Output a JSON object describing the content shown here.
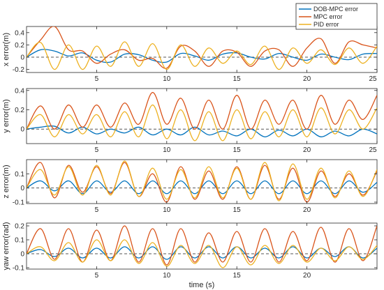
{
  "chart_data": [
    {
      "type": "line",
      "ylabel": "x error(m)",
      "ylim": [
        -0.25,
        0.5
      ],
      "yticks": [
        -0.2,
        0,
        0.2,
        0.4
      ],
      "ytick_labels": [
        "-0.2",
        "0",
        "0.2",
        "0.4"
      ],
      "xlim": [
        0,
        25
      ],
      "xticks": [
        5,
        10,
        15,
        20,
        25
      ],
      "xtick_labels": [
        "5",
        "10",
        "15",
        "20",
        "25"
      ],
      "reference_line": 0,
      "series": [
        {
          "name": "DOB-MPC error",
          "x": [
            0,
            1,
            2,
            3,
            4,
            5,
            6,
            7,
            8,
            9,
            10,
            11,
            12,
            13,
            14,
            15,
            16,
            17,
            18,
            19,
            20,
            21,
            22,
            23,
            24,
            25
          ],
          "values": [
            0,
            0.12,
            0.1,
            0.02,
            0.07,
            -0.05,
            -0.08,
            0.05,
            0.04,
            -0.05,
            -0.08,
            0.06,
            0.02,
            -0.05,
            0.05,
            0.07,
            0.0,
            -0.03,
            0.06,
            0.0,
            -0.05,
            0.05,
            0.0,
            -0.04,
            0.05,
            0.06
          ]
        },
        {
          "name": "MPC error",
          "x": [
            0,
            1,
            2,
            3,
            4,
            5,
            6,
            7,
            8,
            9,
            10,
            11,
            12,
            13,
            14,
            15,
            16,
            17,
            18,
            19,
            20,
            21,
            22,
            23,
            24,
            25
          ],
          "values": [
            0,
            0.28,
            0.5,
            0.12,
            0.1,
            -0.1,
            0.05,
            0.12,
            -0.05,
            -0.02,
            -0.18,
            0.18,
            0.1,
            -0.15,
            0.1,
            0.08,
            -0.15,
            0.1,
            0.12,
            -0.15,
            0.15,
            0.3,
            -0.1,
            0.25,
            0.2,
            0.15
          ]
        },
        {
          "name": "PID error",
          "x": [
            0,
            1,
            2,
            3,
            4,
            5,
            6,
            7,
            8,
            9,
            10,
            11,
            12,
            13,
            14,
            15,
            16,
            17,
            18,
            19,
            20,
            21,
            22,
            23,
            24,
            25
          ],
          "values": [
            0,
            0.24,
            -0.2,
            0.2,
            -0.2,
            0.18,
            -0.15,
            0.25,
            -0.15,
            0.22,
            -0.2,
            0.2,
            -0.15,
            0.15,
            -0.1,
            0.1,
            -0.12,
            0.18,
            -0.2,
            0.15,
            -0.1,
            0.12,
            -0.12,
            0.15,
            -0.1,
            0.18
          ]
        }
      ]
    },
    {
      "type": "line",
      "ylabel": "y error(m)",
      "ylim": [
        -0.15,
        0.42
      ],
      "yticks": [
        0,
        0.2,
        0.4
      ],
      "ytick_labels": [
        "0",
        "0.2",
        "0.4"
      ],
      "xlim": [
        0,
        25
      ],
      "xticks": [
        5,
        10,
        15,
        20,
        25
      ],
      "xtick_labels": [
        "5",
        "10",
        "15",
        "20",
        "25"
      ],
      "reference_line": 0,
      "series": [
        {
          "name": "DOB-MPC error",
          "x": [
            0,
            1,
            2,
            3,
            4,
            5,
            6,
            7,
            8,
            9,
            10,
            11,
            12,
            13,
            14,
            15,
            16,
            17,
            18,
            19,
            20,
            21,
            22,
            23,
            24,
            25
          ],
          "values": [
            0,
            0.02,
            0.03,
            -0.04,
            0.02,
            -0.05,
            0.0,
            -0.04,
            0.02,
            -0.06,
            0.0,
            -0.06,
            0.02,
            -0.06,
            -0.02,
            -0.07,
            0.0,
            -0.08,
            -0.01,
            -0.07,
            0.0,
            -0.08,
            -0.02,
            -0.07,
            0.0,
            -0.05
          ]
        },
        {
          "name": "MPC error",
          "x": [
            0,
            1,
            2,
            3,
            4,
            5,
            6,
            7,
            8,
            9,
            10,
            11,
            12,
            13,
            14,
            15,
            16,
            17,
            18,
            19,
            20,
            21,
            22,
            23,
            24,
            25
          ],
          "values": [
            0,
            0.24,
            0.0,
            0.25,
            0.02,
            0.25,
            0.02,
            0.27,
            0.05,
            0.38,
            0.05,
            0.32,
            0.0,
            0.3,
            0.0,
            0.35,
            0.0,
            0.3,
            0.05,
            0.3,
            0.0,
            0.35,
            0.05,
            0.3,
            0.1,
            0.35
          ]
        },
        {
          "name": "PID error",
          "x": [
            0,
            1,
            2,
            3,
            4,
            5,
            6,
            7,
            8,
            9,
            10,
            11,
            12,
            13,
            14,
            15,
            16,
            17,
            18,
            19,
            20,
            21,
            22,
            23,
            24,
            25
          ],
          "values": [
            0,
            0.15,
            -0.08,
            0.15,
            -0.05,
            0.15,
            -0.08,
            0.18,
            -0.08,
            0.25,
            -0.1,
            0.2,
            -0.12,
            0.18,
            -0.12,
            0.2,
            -0.1,
            0.18,
            -0.08,
            0.2,
            -0.08,
            0.22,
            -0.05,
            0.2,
            0.0,
            0.22
          ]
        }
      ]
    },
    {
      "type": "line",
      "ylabel": "z error(m)",
      "ylim": [
        -0.11,
        0.2
      ],
      "yticks": [
        -0.1,
        0,
        0.1
      ],
      "ytick_labels": [
        "-0.1",
        "0",
        "0.1"
      ],
      "xlim": [
        0,
        25
      ],
      "xticks": [
        5,
        10,
        15,
        20
      ],
      "xtick_labels": [
        "5",
        "10",
        "15",
        "20"
      ],
      "reference_line": 0,
      "series": [
        {
          "name": "DOB-MPC error",
          "x": [
            0,
            1,
            2,
            3,
            4,
            5,
            6,
            7,
            8,
            9,
            10,
            11,
            12,
            13,
            14,
            15,
            16,
            17,
            18,
            19,
            20,
            21,
            22,
            23,
            24,
            25
          ],
          "values": [
            0,
            0.05,
            -0.02,
            0.05,
            -0.04,
            0.05,
            -0.03,
            0.05,
            -0.04,
            0.05,
            -0.04,
            0.05,
            -0.04,
            0.05,
            -0.04,
            0.05,
            -0.04,
            0.05,
            -0.04,
            0.05,
            -0.04,
            0.05,
            -0.04,
            0.05,
            -0.03,
            0.04
          ]
        },
        {
          "name": "MPC error",
          "x": [
            0,
            1,
            2,
            3,
            4,
            5,
            6,
            7,
            8,
            9,
            10,
            11,
            12,
            13,
            14,
            15,
            16,
            17,
            18,
            19,
            20,
            21,
            22,
            23,
            24,
            25
          ],
          "values": [
            0,
            0.18,
            -0.07,
            0.16,
            -0.03,
            0.15,
            -0.04,
            0.18,
            -0.06,
            0.1,
            -0.1,
            0.15,
            -0.08,
            0.12,
            -0.08,
            0.15,
            -0.08,
            0.16,
            -0.08,
            0.14,
            -0.1,
            0.12,
            -0.06,
            0.1,
            -0.05,
            0.12
          ]
        },
        {
          "name": "PID error",
          "x": [
            0,
            1,
            2,
            3,
            4,
            5,
            6,
            7,
            8,
            9,
            10,
            11,
            12,
            13,
            14,
            15,
            16,
            17,
            18,
            19,
            20,
            21,
            22,
            23,
            24,
            25
          ],
          "values": [
            0,
            0.13,
            -0.05,
            0.15,
            -0.05,
            0.16,
            -0.05,
            0.19,
            -0.06,
            0.14,
            -0.08,
            0.13,
            -0.07,
            0.15,
            -0.07,
            0.14,
            -0.08,
            0.18,
            -0.09,
            0.17,
            -0.08,
            0.14,
            -0.07,
            0.12,
            -0.06,
            0.13
          ]
        }
      ]
    },
    {
      "type": "line",
      "ylabel": "yaw error(rad)",
      "xlabel": "time (s)",
      "ylim": [
        -0.11,
        0.22
      ],
      "yticks": [
        -0.1,
        0,
        0.1,
        0.2
      ],
      "ytick_labels": [
        "-0.1",
        "0",
        "0.1",
        "0.2"
      ],
      "xlim": [
        0,
        25
      ],
      "xticks": [
        5,
        10,
        15,
        20
      ],
      "xtick_labels": [
        "5",
        "10",
        "15",
        "20"
      ],
      "reference_line": 0,
      "series": [
        {
          "name": "DOB-MPC error",
          "x": [
            0,
            1,
            2,
            3,
            4,
            5,
            6,
            7,
            8,
            9,
            10,
            11,
            12,
            13,
            14,
            15,
            16,
            17,
            18,
            19,
            20,
            21,
            22,
            23,
            24,
            25
          ],
          "values": [
            0,
            0.03,
            -0.02,
            0.04,
            -0.03,
            0.04,
            -0.03,
            0.05,
            -0.03,
            0.05,
            -0.04,
            0.05,
            -0.03,
            0.05,
            -0.03,
            0.05,
            -0.03,
            0.04,
            -0.03,
            0.05,
            -0.03,
            0.04,
            -0.02,
            0.05,
            -0.03,
            0.04
          ]
        },
        {
          "name": "MPC error",
          "x": [
            0,
            1,
            2,
            3,
            4,
            5,
            6,
            7,
            8,
            9,
            10,
            11,
            12,
            13,
            14,
            15,
            16,
            17,
            18,
            19,
            20,
            21,
            22,
            23,
            24,
            25
          ],
          "values": [
            0,
            0.18,
            -0.04,
            0.18,
            -0.06,
            0.17,
            -0.05,
            0.2,
            -0.06,
            0.18,
            -0.08,
            0.18,
            -0.06,
            0.15,
            -0.06,
            0.16,
            -0.06,
            0.18,
            -0.06,
            0.16,
            -0.05,
            0.19,
            -0.06,
            0.18,
            -0.05,
            0.2
          ]
        },
        {
          "name": "PID error",
          "x": [
            0,
            1,
            2,
            3,
            4,
            5,
            6,
            7,
            8,
            9,
            10,
            11,
            12,
            13,
            14,
            15,
            16,
            17,
            18,
            19,
            20,
            21,
            22,
            23,
            24,
            25
          ],
          "values": [
            0,
            0.05,
            -0.05,
            0.08,
            -0.06,
            0.1,
            -0.05,
            0.1,
            -0.07,
            0.08,
            -0.09,
            0.06,
            -0.07,
            0.06,
            -0.1,
            0.05,
            -0.08,
            0.06,
            -0.07,
            0.06,
            -0.06,
            0.04,
            -0.05,
            0.05,
            -0.04,
            0.06
          ]
        }
      ]
    }
  ],
  "legend": {
    "placement": "top-right",
    "entries": [
      {
        "label": "DOB-MPC error",
        "color": "#0072BD"
      },
      {
        "label": "MPC error",
        "color": "#D95319"
      },
      {
        "label": "PID error",
        "color": "#EDB120"
      }
    ]
  },
  "colors": {
    "axis": "#262626",
    "reference_line": "#555555"
  }
}
